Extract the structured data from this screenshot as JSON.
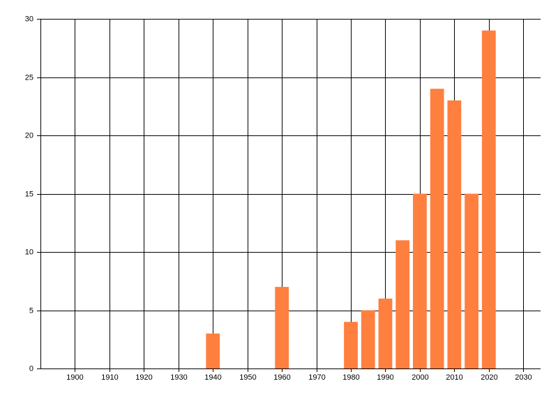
{
  "chart_data": {
    "type": "bar",
    "x": [
      1940,
      1960,
      1980,
      1985,
      1990,
      1995,
      2000,
      2005,
      2010,
      2015,
      2020
    ],
    "values": [
      3,
      7,
      4,
      5,
      6,
      11,
      15,
      24,
      23,
      15,
      29
    ],
    "color": "#ff7f3f",
    "bar_width": 4,
    "xlim": [
      1890,
      2035
    ],
    "xticks": [
      1900,
      1910,
      1920,
      1930,
      1940,
      1950,
      1960,
      1970,
      1980,
      1990,
      2000,
      2010,
      2020,
      2030
    ],
    "ylim": [
      0,
      30
    ],
    "yticks": [
      0,
      5,
      10,
      15,
      20,
      25,
      30
    ],
    "grid": true
  }
}
